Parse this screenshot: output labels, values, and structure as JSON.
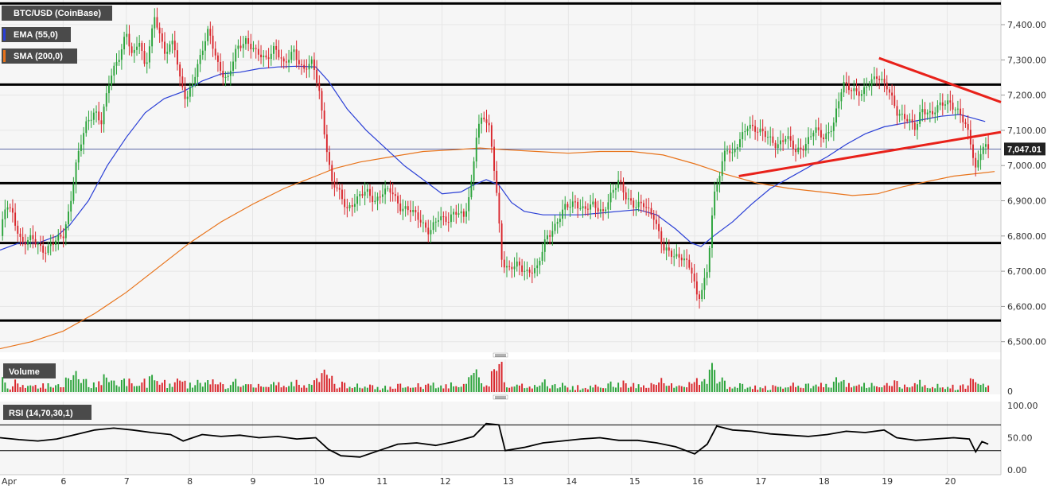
{
  "chart_data": {
    "type": "candlestick",
    "symbol": "BTC/USD (CoinBase)",
    "legend": [
      {
        "label": "EMA (55,0)",
        "color": "#2a3fd6"
      },
      {
        "label": "SMA (200,0)",
        "color": "#e8731a"
      }
    ],
    "price_axis": {
      "ticks": [
        6500,
        6600,
        6700,
        6800,
        6900,
        7000,
        7100,
        7200,
        7300,
        7400
      ],
      "tick_labels": [
        "6,500.00",
        "6,600.00",
        "6,700.00",
        "6,800.00",
        "6,900.00",
        "7,000.00",
        "7,100.00",
        "7,200.00",
        "7,300.00",
        "7,400.00"
      ],
      "ylim": [
        6470,
        7470
      ],
      "last_price": 7047.01,
      "last_price_label": "7,047.01"
    },
    "time_axis": {
      "xlim": [
        5.0,
        20.85
      ],
      "ticks": [
        {
          "day": 5.0,
          "label": "Apr"
        },
        {
          "day": 6,
          "label": "6"
        },
        {
          "day": 7,
          "label": "7"
        },
        {
          "day": 8,
          "label": "8"
        },
        {
          "day": 9,
          "label": "9"
        },
        {
          "day": 10,
          "label": "10"
        },
        {
          "day": 11,
          "label": "11"
        },
        {
          "day": 12,
          "label": "12"
        },
        {
          "day": 13,
          "label": "13"
        },
        {
          "day": 14,
          "label": "14"
        },
        {
          "day": 15,
          "label": "15"
        },
        {
          "day": 16,
          "label": "16"
        },
        {
          "day": 17,
          "label": "17"
        },
        {
          "day": 18,
          "label": "18"
        },
        {
          "day": 19,
          "label": "19"
        },
        {
          "day": 20,
          "label": "20"
        }
      ]
    },
    "price_series": [
      [
        5.0,
        6800
      ],
      [
        5.1,
        6890
      ],
      [
        5.2,
        6860
      ],
      [
        5.35,
        6780
      ],
      [
        5.5,
        6790
      ],
      [
        5.7,
        6760
      ],
      [
        5.85,
        6780
      ],
      [
        6.0,
        6800
      ],
      [
        6.1,
        6880
      ],
      [
        6.2,
        7000
      ],
      [
        6.35,
        7110
      ],
      [
        6.5,
        7160
      ],
      [
        6.6,
        7120
      ],
      [
        6.75,
        7250
      ],
      [
        6.9,
        7320
      ],
      [
        7.0,
        7380
      ],
      [
        7.1,
        7300
      ],
      [
        7.2,
        7360
      ],
      [
        7.3,
        7280
      ],
      [
        7.45,
        7420
      ],
      [
        7.6,
        7320
      ],
      [
        7.75,
        7360
      ],
      [
        7.85,
        7240
      ],
      [
        7.95,
        7180
      ],
      [
        8.05,
        7240
      ],
      [
        8.15,
        7300
      ],
      [
        8.3,
        7380
      ],
      [
        8.45,
        7290
      ],
      [
        8.6,
        7240
      ],
      [
        8.75,
        7330
      ],
      [
        8.9,
        7360
      ],
      [
        9.05,
        7320
      ],
      [
        9.2,
        7300
      ],
      [
        9.35,
        7340
      ],
      [
        9.5,
        7280
      ],
      [
        9.65,
        7330
      ],
      [
        9.8,
        7270
      ],
      [
        9.95,
        7290
      ],
      [
        10.05,
        7220
      ],
      [
        10.15,
        7080
      ],
      [
        10.25,
        6950
      ],
      [
        10.35,
        6930
      ],
      [
        10.5,
        6880
      ],
      [
        10.65,
        6900
      ],
      [
        10.8,
        6930
      ],
      [
        10.95,
        6900
      ],
      [
        11.05,
        6920
      ],
      [
        11.2,
        6930
      ],
      [
        11.35,
        6880
      ],
      [
        11.5,
        6870
      ],
      [
        11.65,
        6850
      ],
      [
        11.8,
        6810
      ],
      [
        11.95,
        6850
      ],
      [
        12.1,
        6850
      ],
      [
        12.2,
        6870
      ],
      [
        12.35,
        6850
      ],
      [
        12.45,
        6930
      ],
      [
        12.55,
        7100
      ],
      [
        12.65,
        7140
      ],
      [
        12.75,
        7100
      ],
      [
        12.85,
        6960
      ],
      [
        12.95,
        6730
      ],
      [
        13.05,
        6700
      ],
      [
        13.2,
        6720
      ],
      [
        13.35,
        6700
      ],
      [
        13.5,
        6700
      ],
      [
        13.65,
        6800
      ],
      [
        13.8,
        6830
      ],
      [
        13.95,
        6880
      ],
      [
        14.1,
        6900
      ],
      [
        14.25,
        6870
      ],
      [
        14.4,
        6890
      ],
      [
        14.55,
        6870
      ],
      [
        14.7,
        6920
      ],
      [
        14.8,
        6960
      ],
      [
        14.9,
        6920
      ],
      [
        15.05,
        6880
      ],
      [
        15.2,
        6890
      ],
      [
        15.35,
        6860
      ],
      [
        15.5,
        6760
      ],
      [
        15.65,
        6750
      ],
      [
        15.8,
        6740
      ],
      [
        15.95,
        6700
      ],
      [
        16.05,
        6620
      ],
      [
        16.2,
        6700
      ],
      [
        16.3,
        6900
      ],
      [
        16.4,
        6980
      ],
      [
        16.5,
        7060
      ],
      [
        16.6,
        7030
      ],
      [
        16.75,
        7080
      ],
      [
        16.85,
        7120
      ],
      [
        17.0,
        7100
      ],
      [
        17.15,
        7080
      ],
      [
        17.3,
        7060
      ],
      [
        17.45,
        7080
      ],
      [
        17.6,
        7040
      ],
      [
        17.75,
        7060
      ],
      [
        17.9,
        7100
      ],
      [
        18.05,
        7080
      ],
      [
        18.2,
        7120
      ],
      [
        18.35,
        7230
      ],
      [
        18.5,
        7220
      ],
      [
        18.65,
        7200
      ],
      [
        18.8,
        7240
      ],
      [
        18.9,
        7260
      ],
      [
        19.05,
        7220
      ],
      [
        19.2,
        7150
      ],
      [
        19.35,
        7140
      ],
      [
        19.5,
        7100
      ],
      [
        19.6,
        7160
      ],
      [
        19.75,
        7150
      ],
      [
        19.9,
        7170
      ],
      [
        20.05,
        7180
      ],
      [
        20.2,
        7150
      ],
      [
        20.35,
        7080
      ],
      [
        20.45,
        6990
      ],
      [
        20.55,
        7060
      ],
      [
        20.65,
        7047.01
      ]
    ],
    "ema_55": [
      [
        5.0,
        6760
      ],
      [
        5.3,
        6780
      ],
      [
        5.6,
        6780
      ],
      [
        5.9,
        6800
      ],
      [
        6.1,
        6830
      ],
      [
        6.4,
        6900
      ],
      [
        6.7,
        7000
      ],
      [
        7.0,
        7080
      ],
      [
        7.3,
        7150
      ],
      [
        7.6,
        7190
      ],
      [
        7.9,
        7210
      ],
      [
        8.2,
        7240
      ],
      [
        8.5,
        7260
      ],
      [
        8.8,
        7265
      ],
      [
        9.1,
        7275
      ],
      [
        9.4,
        7280
      ],
      [
        9.7,
        7282
      ],
      [
        10.0,
        7280
      ],
      [
        10.2,
        7240
      ],
      [
        10.5,
        7160
      ],
      [
        10.8,
        7100
      ],
      [
        11.1,
        7050
      ],
      [
        11.4,
        7000
      ],
      [
        11.7,
        6960
      ],
      [
        12.0,
        6920
      ],
      [
        12.3,
        6925
      ],
      [
        12.5,
        6945
      ],
      [
        12.7,
        6960
      ],
      [
        12.9,
        6945
      ],
      [
        13.1,
        6895
      ],
      [
        13.3,
        6870
      ],
      [
        13.6,
        6860
      ],
      [
        13.9,
        6860
      ],
      [
        14.2,
        6860
      ],
      [
        14.5,
        6865
      ],
      [
        14.8,
        6870
      ],
      [
        15.1,
        6875
      ],
      [
        15.4,
        6860
      ],
      [
        15.7,
        6820
      ],
      [
        15.95,
        6780
      ],
      [
        16.1,
        6770
      ],
      [
        16.3,
        6800
      ],
      [
        16.6,
        6840
      ],
      [
        16.9,
        6890
      ],
      [
        17.2,
        6935
      ],
      [
        17.5,
        6965
      ],
      [
        17.8,
        6995
      ],
      [
        18.1,
        7025
      ],
      [
        18.4,
        7060
      ],
      [
        18.7,
        7090
      ],
      [
        19.0,
        7110
      ],
      [
        19.3,
        7120
      ],
      [
        19.6,
        7130
      ],
      [
        19.9,
        7140
      ],
      [
        20.2,
        7145
      ],
      [
        20.4,
        7135
      ],
      [
        20.6,
        7125
      ]
    ],
    "sma_200": [
      [
        5.0,
        6480
      ],
      [
        5.5,
        6500
      ],
      [
        6.0,
        6530
      ],
      [
        6.5,
        6580
      ],
      [
        7.0,
        6640
      ],
      [
        7.5,
        6710
      ],
      [
        8.0,
        6780
      ],
      [
        8.5,
        6840
      ],
      [
        9.0,
        6890
      ],
      [
        9.5,
        6935
      ],
      [
        10.0,
        6970
      ],
      [
        10.3,
        6992
      ],
      [
        10.7,
        7010
      ],
      [
        11.2,
        7025
      ],
      [
        11.7,
        7040
      ],
      [
        12.2,
        7045
      ],
      [
        12.6,
        7050
      ],
      [
        13.0,
        7045
      ],
      [
        13.5,
        7040
      ],
      [
        14.0,
        7035
      ],
      [
        14.5,
        7040
      ],
      [
        15.0,
        7040
      ],
      [
        15.5,
        7030
      ],
      [
        16.0,
        7005
      ],
      [
        16.5,
        6975
      ],
      [
        17.0,
        6950
      ],
      [
        17.5,
        6935
      ],
      [
        18.0,
        6925
      ],
      [
        18.5,
        6915
      ],
      [
        18.9,
        6920
      ],
      [
        19.3,
        6940
      ],
      [
        19.7,
        6955
      ],
      [
        20.1,
        6970
      ],
      [
        20.5,
        6978
      ],
      [
        20.75,
        6983
      ]
    ],
    "horizontal_levels": [
      7460,
      7230,
      6950,
      6780,
      6560
    ],
    "trendlines": [
      {
        "color": "#e8211a",
        "points": [
          [
            18.92,
            7305
          ],
          [
            20.85,
            7180
          ]
        ]
      },
      {
        "color": "#e8211a",
        "points": [
          [
            16.7,
            6970
          ],
          [
            20.85,
            7095
          ]
        ]
      }
    ],
    "volume_pane": {
      "label": "Volume",
      "tick_labels": [
        "0"
      ]
    },
    "rsi_pane": {
      "label": "RSI (14,70,30,1)",
      "ticks": [
        0,
        50,
        100
      ],
      "tick_labels": [
        "0.00",
        "50.00",
        "100.00"
      ],
      "overbought": 70,
      "oversold": 30,
      "series": [
        [
          5.0,
          50
        ],
        [
          5.3,
          47
        ],
        [
          5.6,
          45
        ],
        [
          5.9,
          48
        ],
        [
          6.2,
          55
        ],
        [
          6.5,
          62
        ],
        [
          6.8,
          65
        ],
        [
          7.1,
          62
        ],
        [
          7.4,
          58
        ],
        [
          7.7,
          55
        ],
        [
          7.9,
          45
        ],
        [
          8.2,
          55
        ],
        [
          8.5,
          52
        ],
        [
          8.8,
          54
        ],
        [
          9.1,
          50
        ],
        [
          9.4,
          52
        ],
        [
          9.7,
          48
        ],
        [
          10.0,
          50
        ],
        [
          10.2,
          32
        ],
        [
          10.4,
          22
        ],
        [
          10.7,
          20
        ],
        [
          11.0,
          30
        ],
        [
          11.3,
          40
        ],
        [
          11.6,
          42
        ],
        [
          11.9,
          38
        ],
        [
          12.2,
          44
        ],
        [
          12.5,
          52
        ],
        [
          12.7,
          72
        ],
        [
          12.9,
          70
        ],
        [
          13.0,
          30
        ],
        [
          13.3,
          35
        ],
        [
          13.6,
          42
        ],
        [
          13.9,
          45
        ],
        [
          14.2,
          48
        ],
        [
          14.5,
          50
        ],
        [
          14.8,
          46
        ],
        [
          15.1,
          46
        ],
        [
          15.4,
          42
        ],
        [
          15.7,
          36
        ],
        [
          16.0,
          25
        ],
        [
          16.2,
          40
        ],
        [
          16.35,
          68
        ],
        [
          16.6,
          62
        ],
        [
          16.9,
          60
        ],
        [
          17.2,
          56
        ],
        [
          17.5,
          54
        ],
        [
          17.8,
          52
        ],
        [
          18.1,
          55
        ],
        [
          18.4,
          60
        ],
        [
          18.7,
          58
        ],
        [
          19.0,
          62
        ],
        [
          19.2,
          50
        ],
        [
          19.5,
          46
        ],
        [
          19.8,
          48
        ],
        [
          20.1,
          50
        ],
        [
          20.35,
          48
        ],
        [
          20.45,
          28
        ],
        [
          20.55,
          44
        ],
        [
          20.65,
          40
        ]
      ]
    }
  }
}
